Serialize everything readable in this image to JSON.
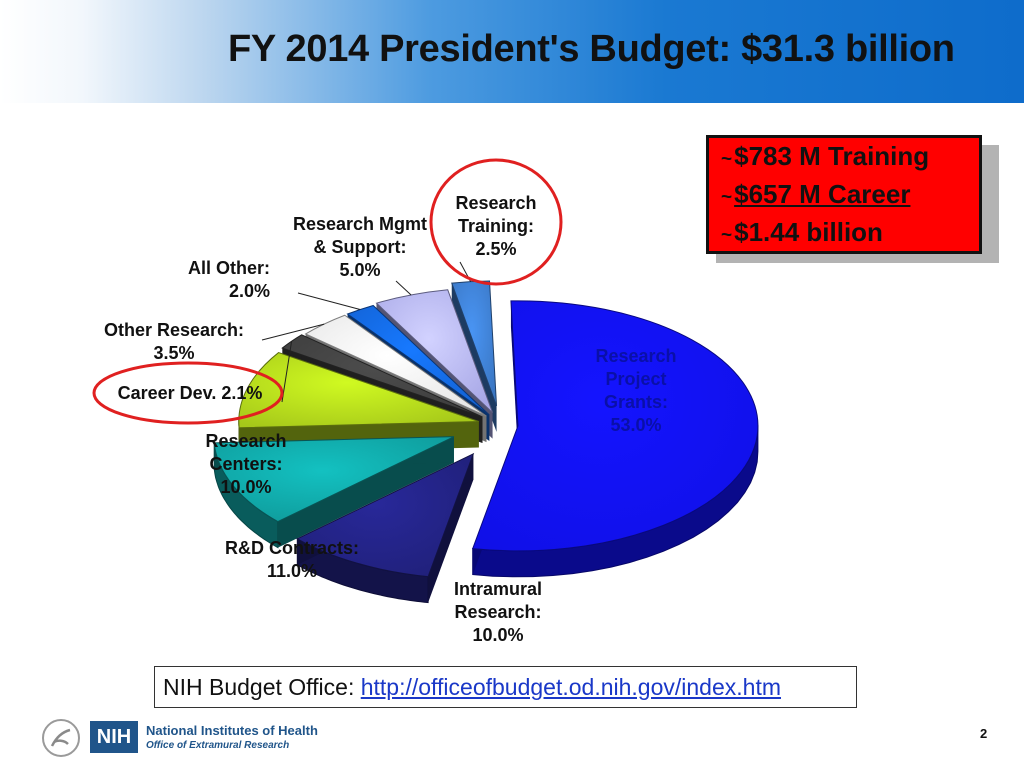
{
  "header": {
    "title": "FY 2014 President's Budget: $31.3 billion"
  },
  "callout": {
    "tilde": "~",
    "line1": "$783 M Training",
    "line2": "$657 M Career",
    "line3": "$1.44  billion"
  },
  "chart_data": {
    "type": "pie",
    "title": "",
    "slices": [
      {
        "name": "Research Project Grants",
        "value": 53.0,
        "label_lines": [
          "Research",
          "Project",
          "Grants:",
          "53.0%"
        ],
        "color": "#1010e8"
      },
      {
        "name": "Intramural Research",
        "value": 10.0,
        "label_lines": [
          "Intramural",
          "Research:",
          "10.0%"
        ],
        "color": "#20207a"
      },
      {
        "name": "R&D Contracts",
        "value": 11.0,
        "label_lines": [
          "R&D Contracts:",
          "11.0%"
        ],
        "color": "#0f9a9a"
      },
      {
        "name": "Research Centers",
        "value": 10.0,
        "label_lines": [
          "Research",
          "Centers:",
          "10.0%"
        ],
        "color": "#a6c81a"
      },
      {
        "name": "Career Dev.",
        "value": 2.1,
        "label_lines": [
          "Career Dev. 2.1%"
        ],
        "color": "#3d3d3d"
      },
      {
        "name": "Other Research",
        "value": 3.5,
        "label_lines": [
          "Other Research:",
          "3.5%"
        ],
        "color": "#e6e6e6"
      },
      {
        "name": "All Other",
        "value": 2.0,
        "label_lines": [
          "All Other:",
          "2.0%"
        ],
        "color": "#1261d2"
      },
      {
        "name": "Research Mgmt & Support",
        "value": 5.0,
        "label_lines": [
          "Research Mgmt",
          "& Support:",
          "5.0%"
        ],
        "color": "#a8a8e6"
      },
      {
        "name": "Research Training",
        "value": 2.5,
        "label_lines": [
          "Research",
          "Training:",
          "2.5%"
        ],
        "color": "#3a76c2"
      }
    ],
    "highlighted": [
      "Career Dev.",
      "Research Training"
    ]
  },
  "footer": {
    "label": "NIH Budget Office: ",
    "link": "http://officeofbudget.od.nih.gov/index.htm"
  },
  "logo": {
    "badge": "NIH",
    "name": "National Institutes of Health",
    "office": "Office of Extramural Research"
  },
  "page_number": "2"
}
